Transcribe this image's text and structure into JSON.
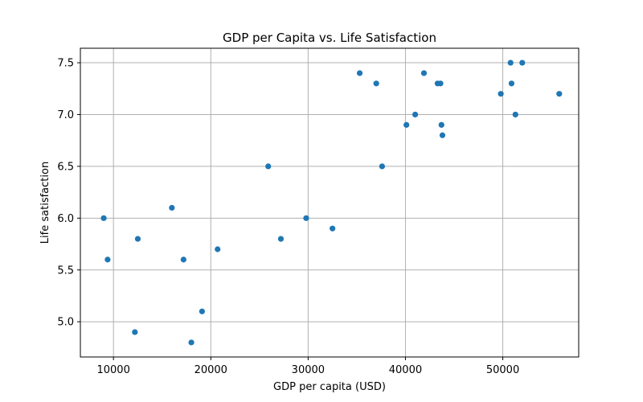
{
  "chart_data": {
    "type": "scatter",
    "title": "GDP per Capita vs. Life Satisfaction",
    "xlabel": "GDP per capita (USD)",
    "ylabel": "Life satisfaction",
    "xlim": [
      6600,
      57800
    ],
    "ylim": [
      4.66,
      7.64
    ],
    "xticks": [
      10000,
      20000,
      30000,
      40000,
      50000
    ],
    "yticks": [
      5.0,
      5.5,
      6.0,
      6.5,
      7.0,
      7.5
    ],
    "xtick_labels": [
      "10000",
      "20000",
      "30000",
      "40000",
      "50000"
    ],
    "ytick_labels": [
      "5.0",
      "5.5",
      "6.0",
      "6.5",
      "7.0",
      "7.5"
    ],
    "grid": true,
    "marker_color": "#1f77b4",
    "points": [
      {
        "x": 9000,
        "y": 6.0
      },
      {
        "x": 9400,
        "y": 5.6
      },
      {
        "x": 12200,
        "y": 4.9
      },
      {
        "x": 12500,
        "y": 5.8
      },
      {
        "x": 16000,
        "y": 6.1
      },
      {
        "x": 17200,
        "y": 5.6
      },
      {
        "x": 18000,
        "y": 4.8
      },
      {
        "x": 19100,
        "y": 5.1
      },
      {
        "x": 20700,
        "y": 5.7
      },
      {
        "x": 25900,
        "y": 6.5
      },
      {
        "x": 27200,
        "y": 5.8
      },
      {
        "x": 29800,
        "y": 6.0
      },
      {
        "x": 32500,
        "y": 5.9
      },
      {
        "x": 35300,
        "y": 7.4
      },
      {
        "x": 37000,
        "y": 7.3
      },
      {
        "x": 37600,
        "y": 6.5
      },
      {
        "x": 40100,
        "y": 6.9
      },
      {
        "x": 41000,
        "y": 7.0
      },
      {
        "x": 41900,
        "y": 7.4
      },
      {
        "x": 43300,
        "y": 7.3
      },
      {
        "x": 43600,
        "y": 7.3
      },
      {
        "x": 43700,
        "y": 6.9
      },
      {
        "x": 43800,
        "y": 6.8
      },
      {
        "x": 49800,
        "y": 7.2
      },
      {
        "x": 50800,
        "y": 7.5
      },
      {
        "x": 50900,
        "y": 7.3
      },
      {
        "x": 51300,
        "y": 7.0
      },
      {
        "x": 52000,
        "y": 7.5
      },
      {
        "x": 55800,
        "y": 7.2
      }
    ]
  }
}
